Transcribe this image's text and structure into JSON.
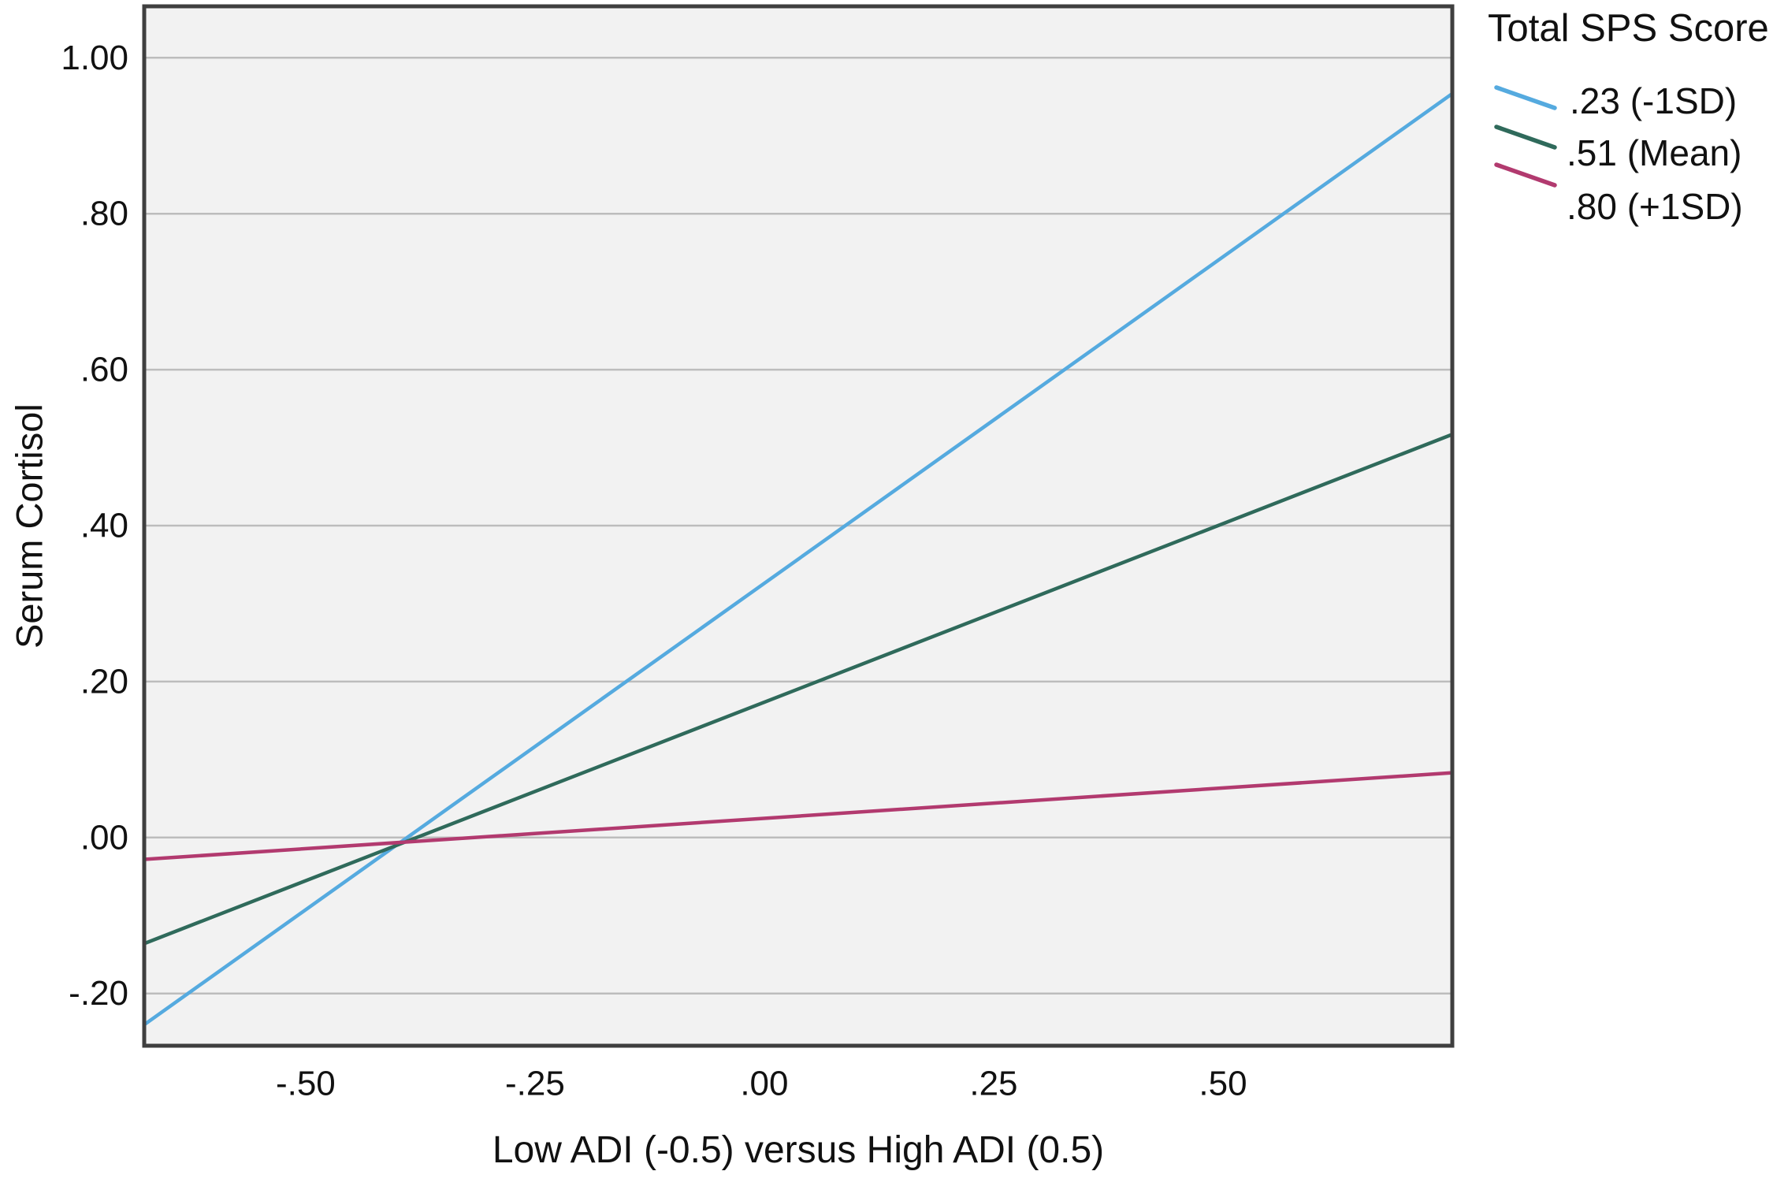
{
  "figure": {
    "x_axis_title": "Low ADI (-0.5) versus High ADI (0.5)",
    "y_axis_title": "Serum Cortisol"
  },
  "legend": {
    "title": "Total SPS Score",
    "entries": [
      {
        "label": ".23 (-1SD)",
        "color": "#55aadf"
      },
      {
        "label": ".51 (Mean)",
        "color": "#2f6a5b"
      },
      {
        "label": ".80 (+1SD)",
        "color": "#b23a6f"
      }
    ]
  },
  "chart_data": {
    "type": "line",
    "title": "",
    "xlabel": "Low ADI (-0.5) versus High ADI (0.5)",
    "ylabel": "Serum Cortisol",
    "legend_title": "Total SPS Score",
    "legend_position": "outside-top-right",
    "grid": "horizontal-only",
    "xlim": [
      -0.676,
      0.75
    ],
    "ylim": [
      -0.267,
      1.066
    ],
    "x_ticks": [
      {
        "value": -0.5,
        "label": "-.50"
      },
      {
        "value": -0.25,
        "label": "-.25"
      },
      {
        "value": 0.0,
        "label": ".00"
      },
      {
        "value": 0.25,
        "label": ".25"
      },
      {
        "value": 0.5,
        "label": ".50"
      }
    ],
    "y_ticks": [
      {
        "value": 1.0,
        "label": "1.00"
      },
      {
        "value": 0.8,
        "label": ".80"
      },
      {
        "value": 0.6,
        "label": ".60"
      },
      {
        "value": 0.4,
        "label": ".40"
      },
      {
        "value": 0.2,
        "label": ".20"
      },
      {
        "value": 0.0,
        "label": ".00"
      },
      {
        "value": -0.2,
        "label": "-.20"
      }
    ],
    "series": [
      {
        "name": ".23 (-1SD)",
        "color": "#55aadf",
        "x": [
          -0.676,
          0.75
        ],
        "y": [
          -0.24,
          0.954
        ]
      },
      {
        "name": ".51 (Mean)",
        "color": "#2f6a5b",
        "x": [
          -0.676,
          0.75
        ],
        "y": [
          -0.136,
          0.517
        ]
      },
      {
        "name": ".80 (+1SD)",
        "color": "#b23a6f",
        "x": [
          -0.676,
          0.75
        ],
        "y": [
          -0.028,
          0.083
        ]
      }
    ],
    "plot_bg": "#f2f2f2",
    "grid_color": "#bdbdbd",
    "frame_color": "#3f3f3f"
  }
}
